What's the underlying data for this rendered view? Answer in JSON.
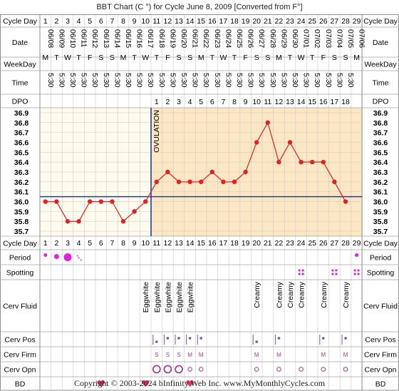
{
  "title": "BBT Chart (C °) for Cycle June 8, 2009  [Converted from F°]",
  "footer": "Copyright © 2003-2024 bInfinity Web Inc.    www.MyMonthlyCycles.com",
  "row_labels": {
    "cycle_day": "Cycle Day",
    "date": "Date",
    "weekday": "WeekDay",
    "time": "Time",
    "dpo": "DPO",
    "period": "Period",
    "spotting": "Spotting",
    "cerv_fluid": "Cerv Fluid",
    "cerv_pos": "Cerv Pos",
    "cerv_firm": "Cerv Firm",
    "cerv_opn": "Cerv Opn",
    "bd": "BD"
  },
  "ovulation_label": "OVULATION",
  "colors": {
    "line": "#dd2222",
    "coverline": "#1a3fb5",
    "ovulation": "#1a3fb5",
    "pre_bg": "#fdfbee",
    "post_bg": "#fbe7c4",
    "header_bg": "#f4f4f4",
    "period": "#e020e0",
    "cerv": "#a04090",
    "heart": "#e0306a"
  },
  "chart_data": {
    "type": "line",
    "cycle_days": [
      1,
      2,
      3,
      4,
      5,
      6,
      7,
      8,
      9,
      10,
      11,
      12,
      13,
      14,
      15,
      16,
      17,
      18,
      19,
      20,
      21,
      22,
      23,
      24,
      25,
      26,
      27,
      28,
      29
    ],
    "dates": [
      "06/08",
      "06/09",
      "06/10",
      "06/11",
      "06/12",
      "06/13",
      "06/14",
      "06/15",
      "06/16",
      "06/17",
      "06/18",
      "06/19",
      "06/20",
      "06/21",
      "06/22",
      "06/23",
      "06/24",
      "06/25",
      "06/26",
      "06/27",
      "06/28",
      "06/29",
      "06/30",
      "07/01",
      "07/02",
      "07/03",
      "07/04",
      "07/05",
      "07/06"
    ],
    "weekdays": [
      "M",
      "T",
      "W",
      "T",
      "F",
      "S",
      "S",
      "M",
      "T",
      "W",
      "T",
      "F",
      "S",
      "S",
      "M",
      "T",
      "W",
      "T",
      "F",
      "S",
      "S",
      "M",
      "T",
      "W",
      "T",
      "F",
      "S",
      "S",
      "M"
    ],
    "times": [
      "5:30",
      "5:30",
      "5:30",
      "5:30",
      "5:30",
      "5:30",
      "5:30",
      "5:30",
      "5:30",
      "5:30",
      "5:30",
      "5:30",
      "5:30",
      "5:30",
      "5:30",
      "5:30",
      "5:30",
      "5:30",
      "5:30",
      "5:30",
      "5:30",
      "5:30",
      "5:30",
      "5:30",
      "5:30",
      "5:30",
      "5:30",
      "5:30",
      ""
    ],
    "dpo": [
      "",
      "",
      "",
      "",
      "",
      "",
      "",
      "",
      "",
      "",
      "1",
      "2",
      "3",
      "4",
      "5",
      "6",
      "7",
      "8",
      "9",
      "10",
      "11",
      "12",
      "13",
      "14",
      "15",
      "16",
      "17",
      "18",
      ""
    ],
    "temps": [
      36.0,
      36.0,
      35.8,
      35.8,
      36.0,
      36.0,
      36.0,
      35.8,
      35.9,
      36.0,
      36.2,
      36.3,
      36.2,
      36.2,
      36.2,
      36.3,
      36.2,
      36.2,
      36.3,
      36.6,
      36.8,
      36.4,
      36.6,
      36.4,
      36.4,
      36.4,
      36.2,
      36.0,
      null
    ],
    "y_ticks": [
      "36.9",
      "36.8",
      "36.7",
      "36.6",
      "36.5",
      "36.4",
      "36.3",
      "36.2",
      "36.1",
      "36.0",
      "35.9",
      "35.8",
      "35.7"
    ],
    "ylim": [
      35.7,
      36.9
    ],
    "coverline": 36.05,
    "ovulation_after_day": 10,
    "period": [
      "small",
      "medium",
      "large",
      "spot-dots",
      "",
      "",
      "",
      "",
      "",
      "",
      "",
      "",
      "",
      "",
      "",
      "",
      "",
      "",
      "",
      "",
      "",
      "",
      "",
      "",
      "",
      "",
      "",
      "",
      "small"
    ],
    "spotting": [
      false,
      false,
      false,
      false,
      false,
      false,
      false,
      false,
      false,
      false,
      false,
      false,
      false,
      false,
      false,
      false,
      false,
      false,
      false,
      false,
      false,
      false,
      false,
      true,
      false,
      false,
      true,
      false,
      true
    ],
    "cerv_fluid": [
      "",
      "",
      "",
      "",
      "",
      "",
      "",
      "",
      "",
      "Eggwhite",
      "Eggwhite",
      "Eggwhite",
      "Eggwhite",
      "Eggwhite",
      "",
      "",
      "",
      "",
      "",
      "Creamy",
      "",
      "Creamy",
      "Creamy",
      "Creamy",
      "",
      "Creamy",
      "",
      "Creamy",
      ""
    ],
    "cerv_pos": [
      "",
      "",
      "",
      "",
      "",
      "",
      "",
      "",
      "",
      "",
      "low",
      "med",
      "med",
      "med",
      "med",
      "",
      "",
      "",
      "",
      "low",
      "",
      "med",
      "",
      "",
      "",
      "med",
      "",
      "med",
      ""
    ],
    "cerv_firm": [
      "",
      "",
      "",
      "",
      "",
      "",
      "",
      "",
      "",
      "",
      "S",
      "S",
      "S",
      "M",
      "M",
      "",
      "",
      "",
      "",
      "M",
      "",
      "M",
      "",
      "",
      "",
      "M",
      "",
      "M",
      ""
    ],
    "cerv_opn": [
      "",
      "",
      "",
      "",
      "",
      "",
      "",
      "",
      "",
      "",
      "large",
      "large",
      "large",
      "small",
      "small",
      "",
      "",
      "",
      "",
      "small",
      "",
      "small",
      "",
      "small",
      "",
      "small",
      "",
      "small",
      ""
    ],
    "bd": [
      false,
      false,
      false,
      false,
      false,
      true,
      false,
      false,
      false,
      true,
      false,
      false,
      false,
      true,
      false,
      false,
      false,
      false,
      false,
      false,
      false,
      false,
      false,
      false,
      false,
      false,
      false,
      false,
      false
    ]
  }
}
